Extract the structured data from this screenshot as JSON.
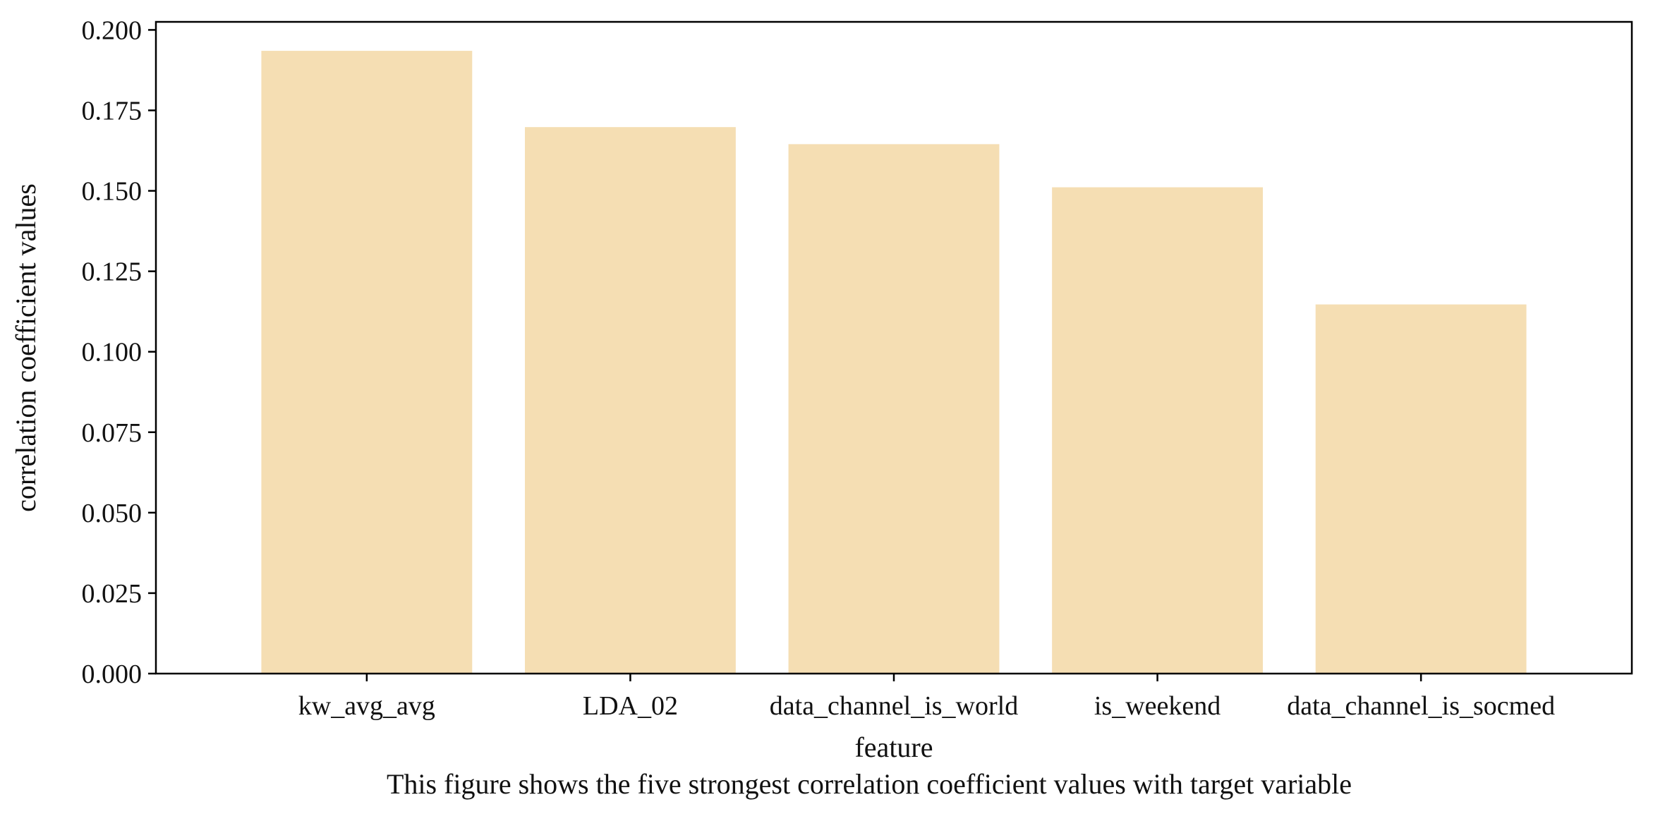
{
  "chart_data": {
    "type": "bar",
    "categories": [
      "kw_avg_avg",
      "LDA_02",
      "data_channel_is_world",
      "is_weekend",
      "data_channel_is_socmed"
    ],
    "values": [
      0.1935,
      0.1698,
      0.1645,
      0.1511,
      0.1147
    ],
    "xlabel": "feature",
    "ylabel": "correlation coefficient values",
    "caption": "This figure shows the five strongest correlation coefficient values with target variable",
    "ylim": [
      0,
      0.2025
    ],
    "yticks": [
      0.0,
      0.025,
      0.05,
      0.075,
      0.1,
      0.125,
      0.15,
      0.175,
      0.2
    ],
    "ytick_labels": [
      "0.000",
      "0.025",
      "0.050",
      "0.075",
      "0.100",
      "0.125",
      "0.150",
      "0.175",
      "0.200"
    ],
    "bar_color": "#f5deb3",
    "axis_color": "#000000",
    "grid": false
  }
}
